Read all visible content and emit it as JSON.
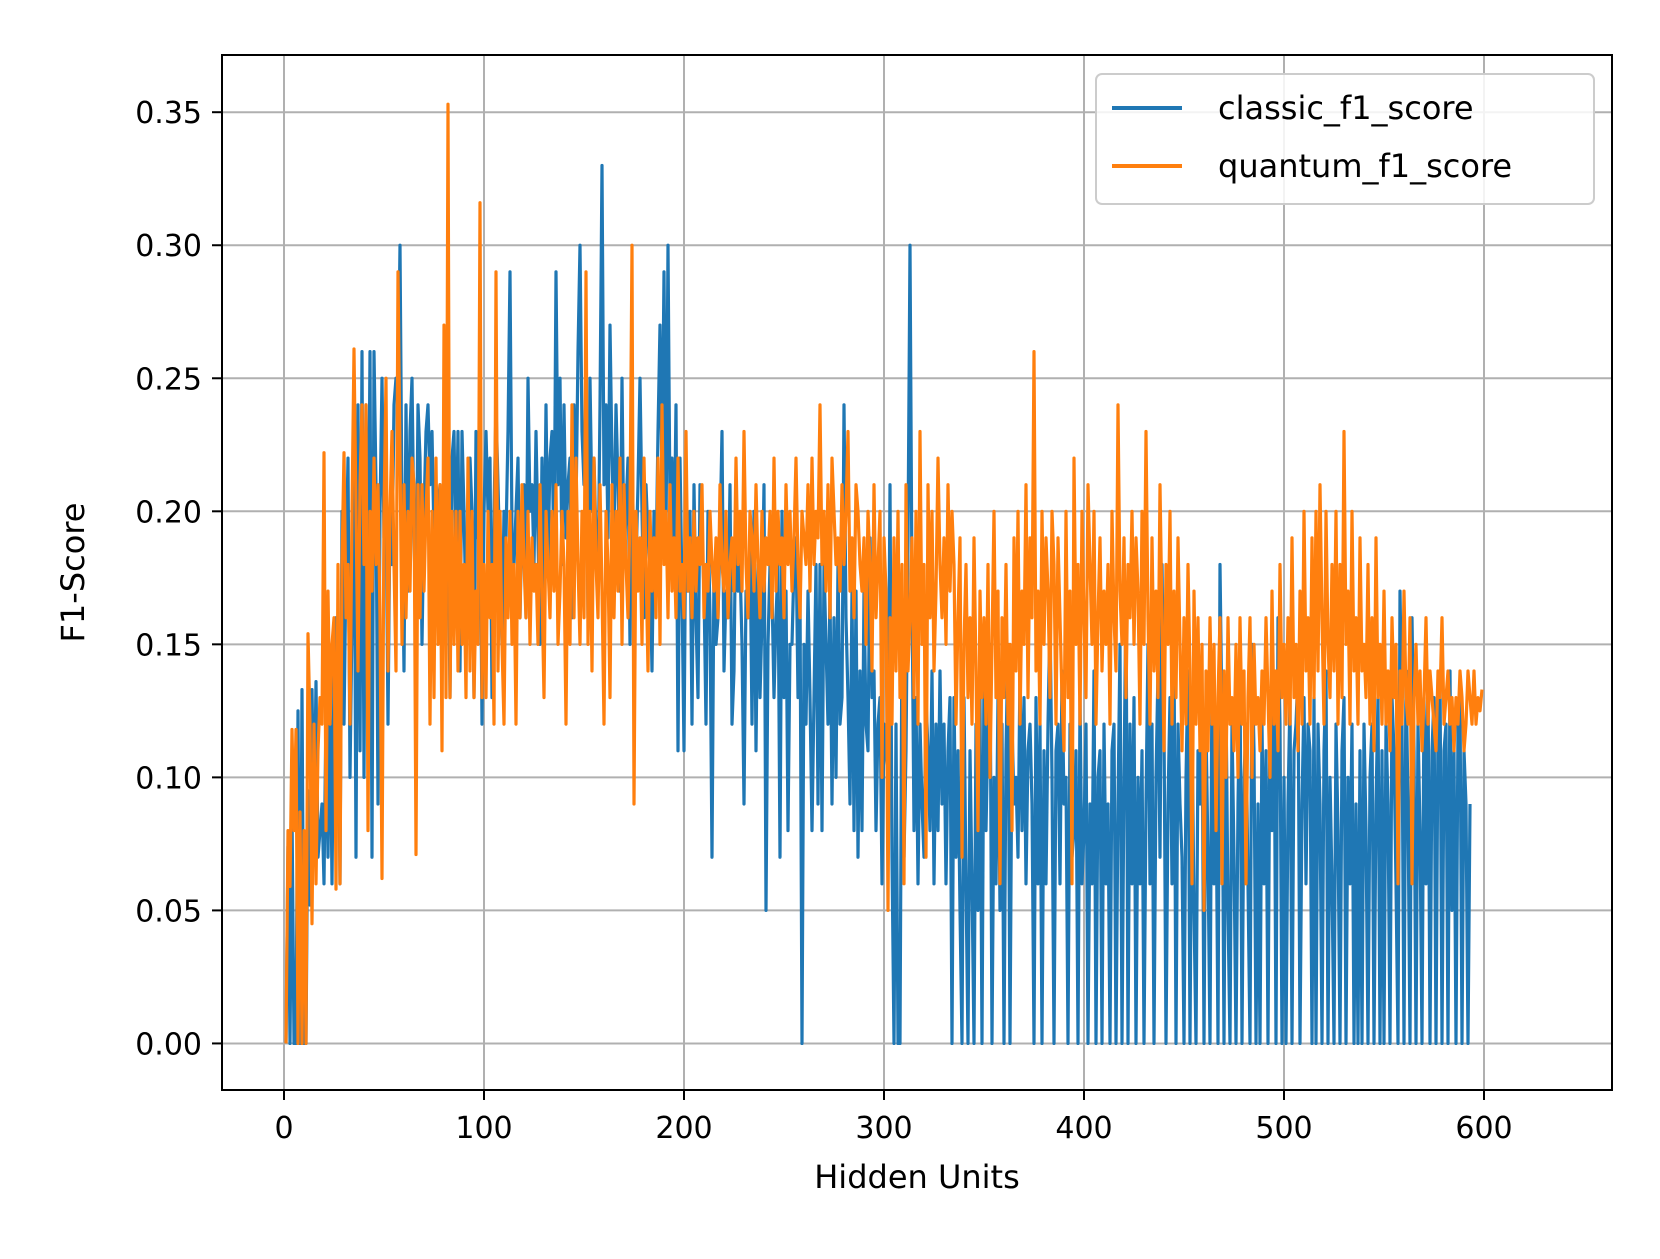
{
  "chart_data": {
    "type": "line",
    "title": "",
    "xlabel": "Hidden Units",
    "ylabel": "F1-Score",
    "xlim": [
      -31,
      664
    ],
    "ylim": [
      -0.0175,
      0.3715
    ],
    "x_ticks": [
      0,
      100,
      200,
      300,
      400,
      500,
      600
    ],
    "x_tick_labels": [
      "0",
      "100",
      "200",
      "300",
      "400",
      "500",
      "600"
    ],
    "y_ticks": [
      0.0,
      0.05,
      0.1,
      0.15,
      0.2,
      0.25,
      0.3,
      0.35
    ],
    "y_tick_labels": [
      "0.00",
      "0.05",
      "0.10",
      "0.15",
      "0.20",
      "0.25",
      "0.30",
      "0.35"
    ],
    "grid": true,
    "legend_position": "top-right",
    "x_range": [
      1,
      632
    ],
    "series": [
      {
        "name": "classic_f1_score",
        "color": "#1f77b4",
        "x_start": 1,
        "x_step": 1,
        "values": [
          0.0,
          0.074,
          0.0,
          0.087,
          0.0,
          0.0,
          0.125,
          0.0,
          0.133,
          0.0,
          0.0,
          0.095,
          0.052,
          0.133,
          0.08,
          0.136,
          0.07,
          0.08,
          0.09,
          0.06,
          0.125,
          0.07,
          0.133,
          0.06,
          0.14,
          0.16,
          0.15,
          0.06,
          0.2,
          0.12,
          0.18,
          0.22,
          0.1,
          0.16,
          0.23,
          0.07,
          0.24,
          0.11,
          0.26,
          0.1,
          0.24,
          0.16,
          0.26,
          0.07,
          0.26,
          0.21,
          0.09,
          0.2,
          0.25,
          0.19,
          0.21,
          0.12,
          0.2,
          0.18,
          0.24,
          0.25,
          0.24,
          0.3,
          0.2,
          0.14,
          0.24,
          0.17,
          0.23,
          0.25,
          0.19,
          0.16,
          0.24,
          0.22,
          0.15,
          0.2,
          0.23,
          0.24,
          0.21,
          0.23,
          0.19,
          0.21,
          0.2,
          0.21,
          0.17,
          0.19,
          0.25,
          0.2,
          0.13,
          0.22,
          0.23,
          0.18,
          0.23,
          0.14,
          0.23,
          0.2,
          0.16,
          0.18,
          0.22,
          0.2,
          0.13,
          0.23,
          0.19,
          0.21,
          0.12,
          0.2,
          0.23,
          0.2,
          0.22,
          0.13,
          0.2,
          0.24,
          0.21,
          0.18,
          0.15,
          0.2,
          0.19,
          0.23,
          0.29,
          0.19,
          0.18,
          0.2,
          0.22,
          0.16,
          0.2,
          0.21,
          0.16,
          0.25,
          0.2,
          0.21,
          0.18,
          0.23,
          0.19,
          0.15,
          0.22,
          0.17,
          0.24,
          0.18,
          0.22,
          0.23,
          0.18,
          0.29,
          0.21,
          0.25,
          0.18,
          0.24,
          0.19,
          0.21,
          0.22,
          0.16,
          0.24,
          0.2,
          0.26,
          0.3,
          0.23,
          0.21,
          0.24,
          0.16,
          0.25,
          0.2,
          0.22,
          0.19,
          0.17,
          0.24,
          0.33,
          0.21,
          0.24,
          0.19,
          0.27,
          0.22,
          0.19,
          0.24,
          0.21,
          0.17,
          0.25,
          0.18,
          0.2,
          0.22,
          0.15,
          0.23,
          0.17,
          0.18,
          0.21,
          0.25,
          0.2,
          0.16,
          0.21,
          0.19,
          0.18,
          0.14,
          0.2,
          0.18,
          0.23,
          0.27,
          0.21,
          0.29,
          0.19,
          0.3,
          0.2,
          0.22,
          0.18,
          0.24,
          0.11,
          0.22,
          0.17,
          0.11,
          0.21,
          0.17,
          0.2,
          0.12,
          0.21,
          0.16,
          0.13,
          0.21,
          0.19,
          0.17,
          0.12,
          0.2,
          0.16,
          0.07,
          0.18,
          0.15,
          0.16,
          0.19,
          0.23,
          0.14,
          0.17,
          0.16,
          0.21,
          0.12,
          0.14,
          0.21,
          0.17,
          0.18,
          0.15,
          0.09,
          0.17,
          0.16,
          0.19,
          0.12,
          0.2,
          0.11,
          0.18,
          0.13,
          0.16,
          0.21,
          0.05,
          0.15,
          0.18,
          0.17,
          0.13,
          0.16,
          0.18,
          0.07,
          0.2,
          0.13,
          0.17,
          0.08,
          0.15,
          0.15,
          0.18,
          0.19,
          0.13,
          0.17,
          0.0,
          0.15,
          0.12,
          0.17,
          0.13,
          0.08,
          0.13,
          0.18,
          0.09,
          0.18,
          0.08,
          0.18,
          0.15,
          0.12,
          0.17,
          0.09,
          0.16,
          0.1,
          0.18,
          0.12,
          0.13,
          0.24,
          0.16,
          0.13,
          0.09,
          0.17,
          0.08,
          0.17,
          0.07,
          0.14,
          0.08,
          0.17,
          0.12,
          0.11,
          0.19,
          0.13,
          0.14,
          0.08,
          0.12,
          0.13,
          0.06,
          0.12,
          0.11,
          0.1,
          0.21,
          0.07,
          0.0,
          0.12,
          0.0,
          0.0,
          0.16,
          0.07,
          0.11,
          0.19,
          0.3,
          0.17,
          0.08,
          0.13,
          0.06,
          0.12,
          0.09,
          0.07,
          0.13,
          0.11,
          0.08,
          0.14,
          0.06,
          0.12,
          0.08,
          0.14,
          0.09,
          0.12,
          0.06,
          0.11,
          0.13,
          0.0,
          0.13,
          0.07,
          0.11,
          0.05,
          0.0,
          0.13,
          0.06,
          0.0,
          0.11,
          0.06,
          0.0,
          0.12,
          0.05,
          0.13,
          0.0,
          0.14,
          0.08,
          0.12,
          0.15,
          0.0,
          0.1,
          0.06,
          0.13,
          0.05,
          0.12,
          0.0,
          0.11,
          0.15,
          0.0,
          0.12,
          0.09,
          0.1,
          0.07,
          0.14,
          0.08,
          0.13,
          0.06,
          0.11,
          0.12,
          0.09,
          0.0,
          0.13,
          0.06,
          0.12,
          0.0,
          0.11,
          0.06,
          0.12,
          0.16,
          0.1,
          0.0,
          0.11,
          0.12,
          0.06,
          0.14,
          0.09,
          0.1,
          0.0,
          0.12,
          0.07,
          0.08,
          0.11,
          0.0,
          0.13,
          0.06,
          0.08,
          0.12,
          0.0,
          0.09,
          0.06,
          0.14,
          0.0,
          0.1,
          0.11,
          0.0,
          0.12,
          0.06,
          0.09,
          0.0,
          0.11,
          0.12,
          0.0,
          0.09,
          0.15,
          0.0,
          0.1,
          0.17,
          0.0,
          0.12,
          0.06,
          0.13,
          0.0,
          0.1,
          0.06,
          0.11,
          0.0,
          0.09,
          0.15,
          0.06,
          0.12,
          0.0,
          0.1,
          0.14,
          0.07,
          0.18,
          0.12,
          0.0,
          0.09,
          0.13,
          0.06,
          0.15,
          0.0,
          0.12,
          0.09,
          0.07,
          0.0,
          0.1,
          0.14,
          0.0,
          0.12,
          0.05,
          0.0,
          0.11,
          0.09,
          0.13,
          0.0,
          0.12,
          0.07,
          0.0,
          0.14,
          0.06,
          0.1,
          0.0,
          0.18,
          0.12,
          0.0,
          0.13,
          0.05,
          0.0,
          0.12,
          0.07,
          0.0,
          0.09,
          0.14,
          0.0,
          0.1,
          0.12,
          0.06,
          0.0,
          0.15,
          0.11,
          0.0,
          0.09,
          0.0,
          0.12,
          0.06,
          0.11,
          0.0,
          0.13,
          0.08,
          0.14,
          0.0,
          0.16,
          0.12,
          0.0,
          0.1,
          0.0,
          0.09,
          0.13,
          0.0,
          0.11,
          0.12,
          0.14,
          0.0,
          0.09,
          0.13,
          0.06,
          0.12,
          0.11,
          0.0,
          0.13,
          0.0,
          0.12,
          0.09,
          0.0,
          0.11,
          0.14,
          0.0,
          0.1,
          0.06,
          0.0,
          0.12,
          0.08,
          0.0,
          0.11,
          0.13,
          0.0,
          0.1,
          0.06,
          0.12,
          0.0,
          0.09,
          0.0,
          0.11,
          0.0,
          0.12,
          0.08,
          0.0,
          0.1,
          0.12,
          0.0,
          0.09,
          0.13,
          0.0,
          0.11,
          0.0,
          0.12,
          0.09,
          0.0,
          0.13,
          0.11,
          0.06,
          0.0,
          0.17,
          0.12,
          0.0,
          0.14,
          0.09,
          0.0,
          0.16,
          0.11,
          0.0,
          0.12,
          0.08,
          0.0,
          0.13,
          0.06,
          0.14,
          0.0,
          0.11,
          0.13,
          0.0,
          0.12,
          0.14,
          0.0,
          0.11,
          0.12,
          0.0,
          0.14,
          0.05,
          0.11,
          0.0,
          0.12,
          0.13,
          0.0,
          0.11,
          0.09,
          0.0,
          0.09
        ]
      },
      {
        "name": "quantum_f1_score",
        "color": "#ff7f0e",
        "x_start": 1,
        "x_step": 1,
        "values": [
          0.0,
          0.08,
          0.059,
          0.118,
          0.08,
          0.118,
          0.0,
          0.087,
          0.0,
          0.08,
          0.0,
          0.154,
          0.12,
          0.045,
          0.12,
          0.06,
          0.11,
          0.13,
          0.12,
          0.222,
          0.08,
          0.17,
          0.12,
          0.15,
          0.16,
          0.058,
          0.18,
          0.06,
          0.18,
          0.222,
          0.16,
          0.18,
          0.12,
          0.2,
          0.261,
          0.2,
          0.14,
          0.21,
          0.24,
          0.18,
          0.24,
          0.08,
          0.2,
          0.17,
          0.22,
          0.18,
          0.21,
          0.16,
          0.062,
          0.2,
          0.25,
          0.14,
          0.2,
          0.23,
          0.18,
          0.14,
          0.29,
          0.22,
          0.15,
          0.21,
          0.16,
          0.2,
          0.17,
          0.22,
          0.21,
          0.071,
          0.21,
          0.16,
          0.21,
          0.17,
          0.2,
          0.22,
          0.12,
          0.2,
          0.13,
          0.22,
          0.15,
          0.21,
          0.11,
          0.27,
          0.13,
          0.353,
          0.13,
          0.2,
          0.15,
          0.2,
          0.14,
          0.2,
          0.15,
          0.18,
          0.13,
          0.22,
          0.14,
          0.2,
          0.13,
          0.17,
          0.15,
          0.316,
          0.13,
          0.18,
          0.13,
          0.2,
          0.16,
          0.18,
          0.12,
          0.29,
          0.14,
          0.2,
          0.15,
          0.12,
          0.19,
          0.16,
          0.2,
          0.15,
          0.18,
          0.12,
          0.2,
          0.16,
          0.21,
          0.18,
          0.16,
          0.2,
          0.15,
          0.19,
          0.17,
          0.18,
          0.15,
          0.21,
          0.17,
          0.13,
          0.2,
          0.18,
          0.16,
          0.2,
          0.17,
          0.21,
          0.15,
          0.17,
          0.2,
          0.18,
          0.12,
          0.2,
          0.15,
          0.24,
          0.16,
          0.22,
          0.18,
          0.15,
          0.2,
          0.16,
          0.29,
          0.15,
          0.2,
          0.14,
          0.22,
          0.18,
          0.16,
          0.21,
          0.17,
          0.12,
          0.2,
          0.18,
          0.13,
          0.21,
          0.16,
          0.2,
          0.17,
          0.22,
          0.15,
          0.21,
          0.18,
          0.16,
          0.2,
          0.3,
          0.09,
          0.2,
          0.17,
          0.19,
          0.15,
          0.22,
          0.18,
          0.14,
          0.2,
          0.17,
          0.19,
          0.16,
          0.22,
          0.15,
          0.24,
          0.18,
          0.2,
          0.16,
          0.21,
          0.17,
          0.19,
          0.16,
          0.22,
          0.17,
          0.18,
          0.16,
          0.23,
          0.17,
          0.19,
          0.16,
          0.2,
          0.17,
          0.19,
          0.18,
          0.21,
          0.16,
          0.18,
          0.17,
          0.2,
          0.18,
          0.17,
          0.19,
          0.16,
          0.21,
          0.18,
          0.17,
          0.2,
          0.16,
          0.18,
          0.19,
          0.17,
          0.22,
          0.18,
          0.2,
          0.17,
          0.23,
          0.18,
          0.16,
          0.2,
          0.19,
          0.17,
          0.21,
          0.18,
          0.16,
          0.2,
          0.17,
          0.19,
          0.18,
          0.2,
          0.16,
          0.22,
          0.17,
          0.2,
          0.18,
          0.19,
          0.16,
          0.21,
          0.18,
          0.2,
          0.17,
          0.19,
          0.22,
          0.18,
          0.16,
          0.2,
          0.19,
          0.18,
          0.21,
          0.17,
          0.22,
          0.18,
          0.2,
          0.19,
          0.24,
          0.18,
          0.2,
          0.17,
          0.21,
          0.16,
          0.22,
          0.2,
          0.18,
          0.19,
          0.17,
          0.21,
          0.18,
          0.2,
          0.23,
          0.17,
          0.19,
          0.16,
          0.21,
          0.2,
          0.18,
          0.17,
          0.19,
          0.15,
          0.2,
          0.18,
          0.14,
          0.21,
          0.16,
          0.18,
          0.2,
          0.1,
          0.19,
          0.17,
          0.05,
          0.16,
          0.12,
          0.19,
          0.14,
          0.2,
          0.13,
          0.18,
          0.06,
          0.21,
          0.14,
          0.16,
          0.19,
          0.13,
          0.2,
          0.12,
          0.23,
          0.15,
          0.18,
          0.07,
          0.21,
          0.16,
          0.2,
          0.14,
          0.17,
          0.22,
          0.18,
          0.16,
          0.19,
          0.15,
          0.21,
          0.17,
          0.2,
          0.18,
          0.12,
          0.16,
          0.19,
          0.07,
          0.15,
          0.18,
          0.13,
          0.16,
          0.12,
          0.19,
          0.14,
          0.08,
          0.17,
          0.13,
          0.16,
          0.12,
          0.18,
          0.1,
          0.15,
          0.2,
          0.13,
          0.17,
          0.06,
          0.16,
          0.13,
          0.18,
          0.12,
          0.15,
          0.08,
          0.19,
          0.14,
          0.2,
          0.12,
          0.17,
          0.15,
          0.21,
          0.13,
          0.19,
          0.16,
          0.26,
          0.14,
          0.17,
          0.12,
          0.2,
          0.15,
          0.19,
          0.17,
          0.13,
          0.2,
          0.18,
          0.12,
          0.19,
          0.16,
          0.13,
          0.11,
          0.2,
          0.13,
          0.17,
          0.06,
          0.22,
          0.15,
          0.18,
          0.12,
          0.2,
          0.16,
          0.13,
          0.21,
          0.18,
          0.15,
          0.2,
          0.12,
          0.16,
          0.19,
          0.14,
          0.17,
          0.15,
          0.18,
          0.12,
          0.2,
          0.16,
          0.14,
          0.24,
          0.17,
          0.15,
          0.19,
          0.13,
          0.18,
          0.16,
          0.2,
          0.15,
          0.19,
          0.17,
          0.12,
          0.2,
          0.15,
          0.23,
          0.16,
          0.12,
          0.19,
          0.14,
          0.17,
          0.13,
          0.21,
          0.16,
          0.11,
          0.18,
          0.15,
          0.2,
          0.12,
          0.17,
          0.13,
          0.19,
          0.15,
          0.11,
          0.16,
          0.12,
          0.18,
          0.14,
          0.06,
          0.17,
          0.12,
          0.16,
          0.11,
          0.15,
          0.05,
          0.14,
          0.11,
          0.16,
          0.12,
          0.15,
          0.08,
          0.13,
          0.16,
          0.06,
          0.14,
          0.1,
          0.16,
          0.12,
          0.13,
          0.11,
          0.15,
          0.1,
          0.16,
          0.12,
          0.14,
          0.06,
          0.13,
          0.16,
          0.1,
          0.15,
          0.12,
          0.13,
          0.11,
          0.14,
          0.12,
          0.16,
          0.13,
          0.1,
          0.17,
          0.12,
          0.14,
          0.11,
          0.18,
          0.13,
          0.15,
          0.12,
          0.16,
          0.12,
          0.19,
          0.13,
          0.15,
          0.11,
          0.17,
          0.12,
          0.2,
          0.14,
          0.16,
          0.12,
          0.19,
          0.13,
          0.2,
          0.14,
          0.21,
          0.16,
          0.12,
          0.2,
          0.15,
          0.13,
          0.18,
          0.14,
          0.2,
          0.12,
          0.18,
          0.13,
          0.23,
          0.15,
          0.17,
          0.12,
          0.2,
          0.14,
          0.16,
          0.12,
          0.19,
          0.14,
          0.15,
          0.13,
          0.18,
          0.12,
          0.16,
          0.11,
          0.19,
          0.13,
          0.15,
          0.12,
          0.17,
          0.12,
          0.14,
          0.11,
          0.16,
          0.13,
          0.15,
          0.06,
          0.14,
          0.12,
          0.17,
          0.13,
          0.12,
          0.16,
          0.06,
          0.13,
          0.15,
          0.12,
          0.14,
          0.11,
          0.13,
          0.16,
          0.12,
          0.14,
          0.13,
          0.12,
          0.11,
          0.14,
          0.13,
          0.16,
          0.12,
          0.13,
          0.14,
          0.12,
          0.13,
          0.11,
          0.13,
          0.12,
          0.14,
          0.13,
          0.11,
          0.12,
          0.14,
          0.13,
          0.12,
          0.14,
          0.12,
          0.13,
          0.125,
          0.133
        ]
      }
    ]
  }
}
